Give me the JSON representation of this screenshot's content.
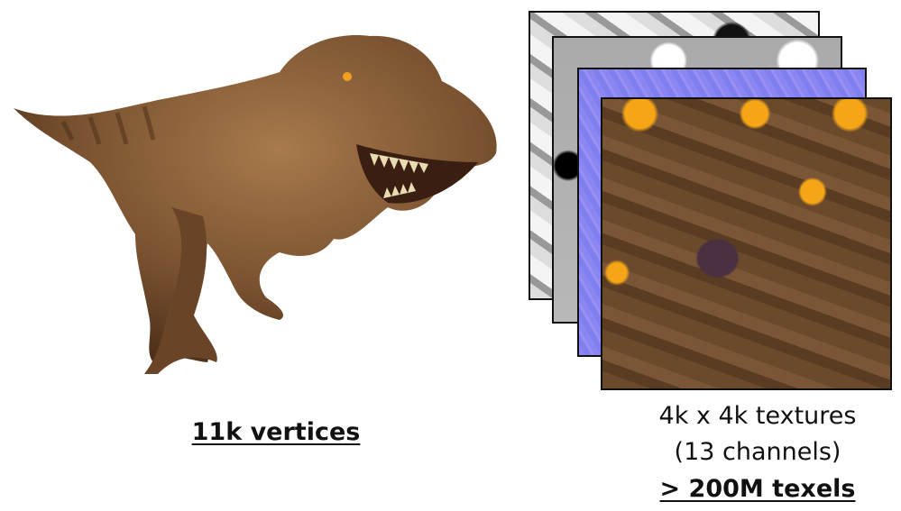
{
  "left_caption": "11k vertices",
  "right_caption": {
    "line1": "4k x 4k textures",
    "line2": "(13 channels)",
    "line3": "> 200M texels"
  },
  "colors": {
    "dino_brown": "#7a5230",
    "normal_map": "#8080f0",
    "albedo": "#5e4026",
    "eye_orange": "#f0a020"
  }
}
